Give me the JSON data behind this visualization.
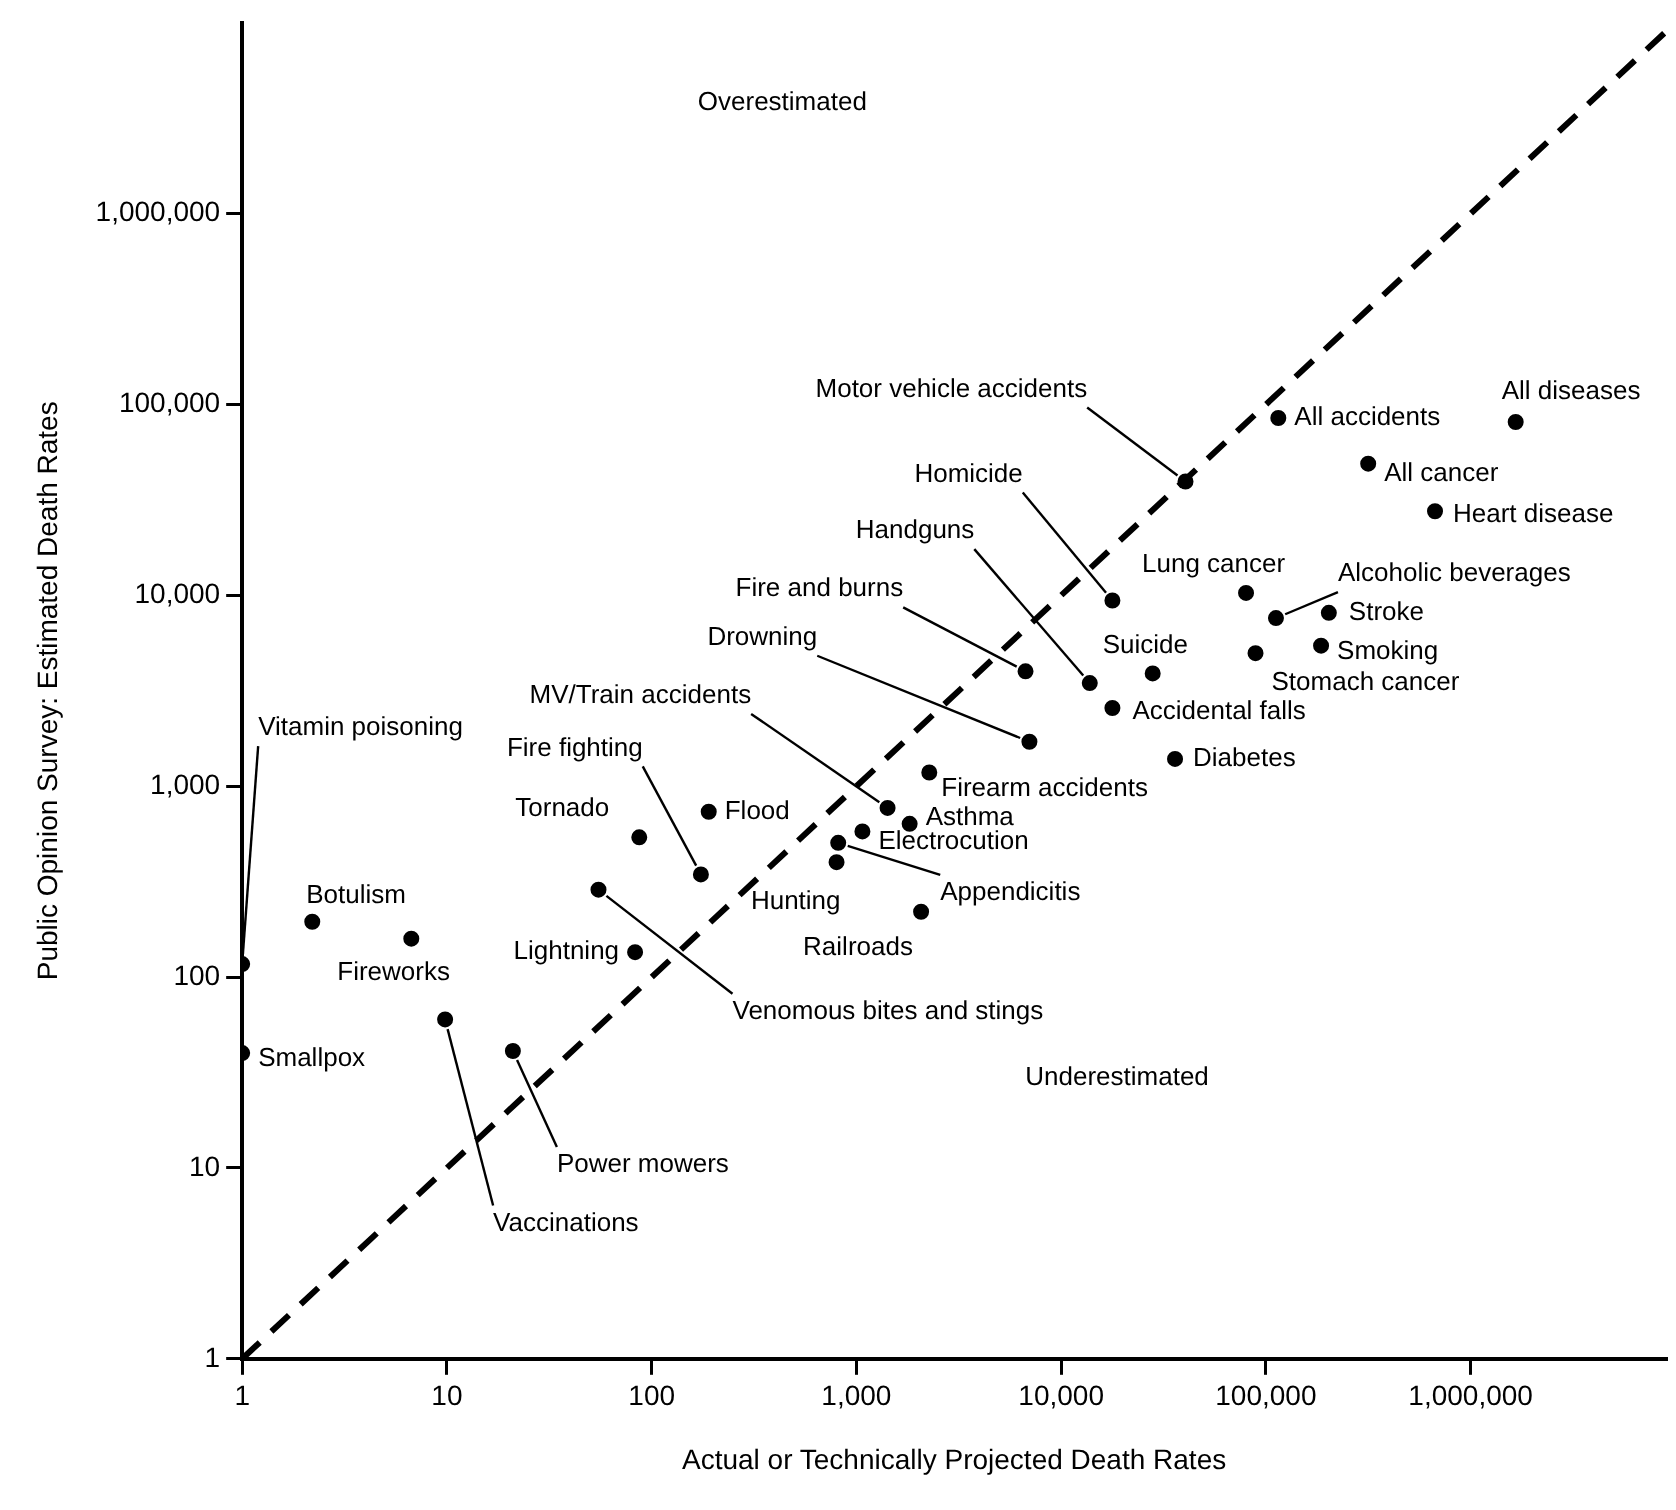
{
  "chart_data": {
    "type": "scatter",
    "xlabel": "Actual or Technically Projected Death Rates",
    "ylabel": "Public Opinion Survey: Estimated Death Rates",
    "log": "xy",
    "grid": false,
    "legend": false,
    "marker": "circle",
    "xlim": [
      1,
      9000000
    ],
    "ylim": [
      1,
      10000000
    ],
    "xticks": [
      1,
      10,
      100,
      {
        "value": 1000,
        "label": "1,000"
      },
      {
        "value": 10000,
        "label": "10,000"
      },
      {
        "value": 100000,
        "label": "100,000"
      },
      {
        "value": 1000000,
        "label": "1,000,000"
      }
    ],
    "yticks": [
      1,
      10,
      100,
      {
        "value": 1000,
        "label": "1,000"
      },
      {
        "value": 10000,
        "label": "10,000"
      },
      {
        "value": 100000,
        "label": "100,000"
      },
      {
        "value": 1000000,
        "label": "1,000,000"
      }
    ],
    "annotations": [
      "Overestimated",
      "Underestimated"
    ],
    "series": [
      {
        "name": "Vitamin poisoning",
        "color": "#000000",
        "x": [
          1
        ],
        "values": [
          117
        ]
      },
      {
        "name": "Smallpox",
        "color": "#000000",
        "x": [
          1
        ],
        "values": [
          40
        ]
      },
      {
        "name": "Botulism",
        "color": "#000000",
        "x": [
          2.2
        ],
        "values": [
          195
        ]
      },
      {
        "name": "Fireworks",
        "color": "#000000",
        "x": [
          6.7
        ],
        "values": [
          159
        ]
      },
      {
        "name": "Vaccinations",
        "color": "#000000",
        "x": [
          9.8
        ],
        "values": [
          60
        ]
      },
      {
        "name": "Power mowers",
        "color": "#000000",
        "x": [
          21
        ],
        "values": [
          41
        ]
      },
      {
        "name": "Tornado",
        "color": "#000000",
        "x": [
          87
        ],
        "values": [
          540
        ]
      },
      {
        "name": "Lightning",
        "color": "#000000",
        "x": [
          83
        ],
        "values": [
          135
        ]
      },
      {
        "name": "Venomous bites and stings",
        "color": "#000000",
        "x": [
          55
        ],
        "values": [
          287
        ]
      },
      {
        "name": "Fire fighting",
        "color": "#000000",
        "x": [
          174
        ],
        "values": [
          345
        ]
      },
      {
        "name": "Flood",
        "color": "#000000",
        "x": [
          190
        ],
        "values": [
          735
        ]
      },
      {
        "name": "MV/Train accidents",
        "color": "#000000",
        "x": [
          1420
        ],
        "values": [
          770
        ]
      },
      {
        "name": "Asthma",
        "color": "#000000",
        "x": [
          1820
        ],
        "values": [
          635
        ]
      },
      {
        "name": "Electrocution",
        "color": "#000000",
        "x": [
          1070
        ],
        "values": [
          580
        ]
      },
      {
        "name": "Appendicitis",
        "color": "#000000",
        "x": [
          815
        ],
        "values": [
          505
        ]
      },
      {
        "name": "Hunting",
        "color": "#000000",
        "x": [
          800
        ],
        "values": [
          400
        ]
      },
      {
        "name": "Railroads",
        "color": "#000000",
        "x": [
          2070
        ],
        "values": [
          220
        ]
      },
      {
        "name": "Firearm accidents",
        "color": "#000000",
        "x": [
          2270
        ],
        "values": [
          1180
        ]
      },
      {
        "name": "Drowning",
        "color": "#000000",
        "x": [
          7000
        ],
        "values": [
          1710
        ]
      },
      {
        "name": "Fire and burns",
        "color": "#000000",
        "x": [
          6700
        ],
        "values": [
          4000
        ]
      },
      {
        "name": "Handguns",
        "color": "#000000",
        "x": [
          13800
        ],
        "values": [
          3470
        ]
      },
      {
        "name": "Homicide",
        "color": "#000000",
        "x": [
          17800
        ],
        "values": [
          9400
        ]
      },
      {
        "name": "Suicide",
        "color": "#000000",
        "x": [
          28000
        ],
        "values": [
          3900
        ]
      },
      {
        "name": "Accidental falls",
        "color": "#000000",
        "x": [
          17800
        ],
        "values": [
          2570
        ]
      },
      {
        "name": "Diabetes",
        "color": "#000000",
        "x": [
          36000
        ],
        "values": [
          1390
        ]
      },
      {
        "name": "Motor vehicle accidents",
        "color": "#000000",
        "x": [
          40500
        ],
        "values": [
          39500
        ]
      },
      {
        "name": "All accidents",
        "color": "#000000",
        "x": [
          115000
        ],
        "values": [
          85000
        ]
      },
      {
        "name": "All diseases",
        "color": "#000000",
        "x": [
          1660000
        ],
        "values": [
          81000
        ]
      },
      {
        "name": "All cancer",
        "color": "#000000",
        "x": [
          316000
        ],
        "values": [
          49000
        ]
      },
      {
        "name": "Heart disease",
        "color": "#000000",
        "x": [
          670000
        ],
        "values": [
          27600
        ]
      },
      {
        "name": "Lung cancer",
        "color": "#000000",
        "x": [
          80000
        ],
        "values": [
          10300
        ]
      },
      {
        "name": "Alcoholic beverages",
        "color": "#000000",
        "x": [
          112000
        ],
        "values": [
          7600
        ]
      },
      {
        "name": "Stroke",
        "color": "#000000",
        "x": [
          203000
        ],
        "values": [
          8100
        ]
      },
      {
        "name": "Smoking",
        "color": "#000000",
        "x": [
          186000
        ],
        "values": [
          5450
        ]
      },
      {
        "name": "Stomach cancer",
        "color": "#000000",
        "x": [
          89000
        ],
        "values": [
          4980
        ]
      },
      {
        "type": "line",
        "color": "#000000",
        "line_style": "dashed",
        "marker": "none",
        "x": [
          1,
          9000000
        ],
        "values": [
          1,
          9000000
        ]
      }
    ]
  }
}
